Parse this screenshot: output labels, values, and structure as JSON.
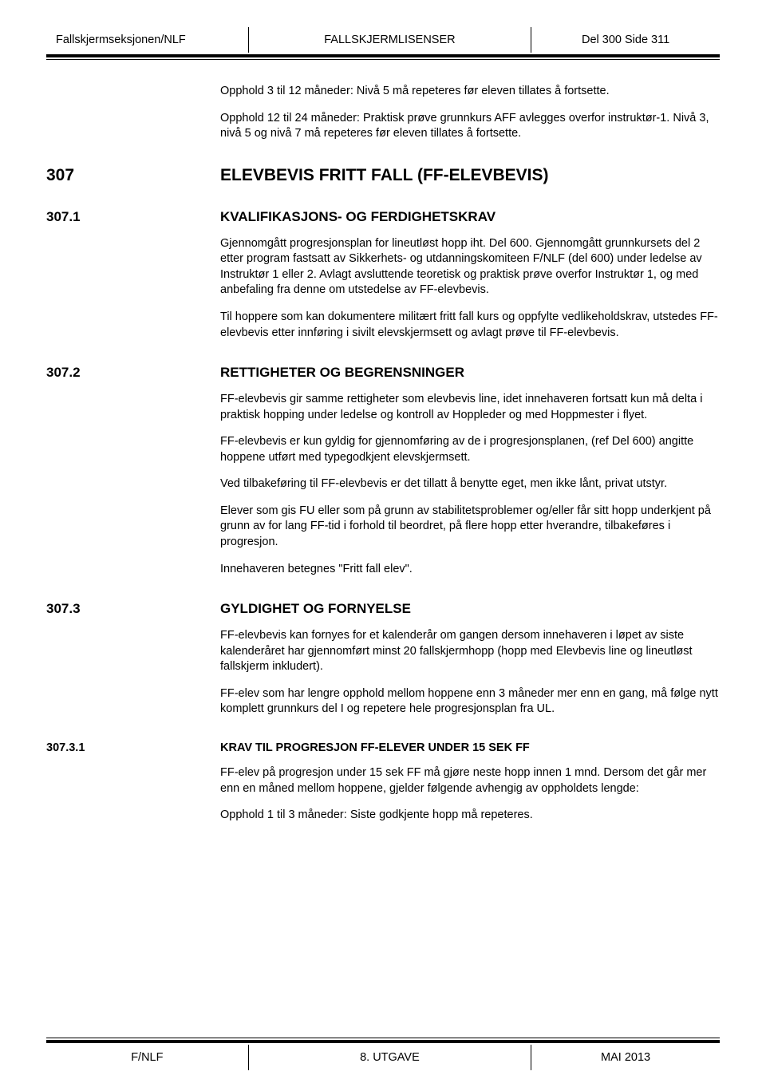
{
  "header": {
    "left": "Fallskjermseksjonen/NLF",
    "center": "FALLSKJERMLISENSER",
    "right": "Del 300 Side 311"
  },
  "intro": {
    "p1": "Opphold 3 til 12 måneder: Nivå 5 må repeteres før eleven tillates å fortsette.",
    "p2": "Opphold 12 til 24 måneder: Praktisk prøve grunnkurs AFF avlegges overfor instruktør-1. Nivå 3, nivå 5 og nivå 7 må repeteres før eleven tillates å fortsette."
  },
  "s307": {
    "num": "307",
    "title": "ELEVBEVIS FRITT FALL (FF-ELEVBEVIS)"
  },
  "s3071": {
    "num": "307.1",
    "title": "KVALIFIKASJONS- OG FERDIGHETSKRAV",
    "p1": "Gjennomgått progresjonsplan for lineutløst hopp iht. Del 600. Gjennomgått grunnkursets del 2 etter program fastsatt av Sikkerhets- og utdanningskomiteen F/NLF (del 600) under ledelse av Instruktør 1 eller 2. Avlagt avsluttende teoretisk og praktisk prøve overfor Instruktør 1, og med anbefaling fra denne om utstedelse av FF-elevbevis.",
    "p2": "Til hoppere som kan dokumentere militært fritt fall kurs og oppfylte vedlikeholdskrav, utstedes FF-elevbevis etter innføring i sivilt elevskjermsett og avlagt prøve til FF-elevbevis."
  },
  "s3072": {
    "num": "307.2",
    "title": "RETTIGHETER OG BEGRENSNINGER",
    "p1": "FF-elevbevis gir samme rettigheter som elevbevis line, idet innehaveren fortsatt kun må delta i praktisk hopping under ledelse og kontroll av Hoppleder og med Hoppmester i flyet.",
    "p2": "FF-elevbevis er kun gyldig for gjennomføring av de i progresjonsplanen, (ref Del 600) angitte hoppene utført med typegodkjent elevskjermsett.",
    "p3": "Ved tilbakeføring til FF-elevbevis er det tillatt å benytte eget, men ikke lånt, privat utstyr.",
    "p4": "Elever som gis FU eller som på grunn av stabilitetsproblemer og/eller får sitt hopp underkjent på grunn av for lang FF-tid i forhold til beordret, på flere hopp etter hverandre, tilbakeføres i progresjon.",
    "p5": "Innehaveren betegnes \"Fritt fall elev\"."
  },
  "s3073": {
    "num": "307.3",
    "title": "GYLDIGHET OG FORNYELSE",
    "p1": "FF-elevbevis kan fornyes for et kalenderår om gangen dersom innehaveren i løpet av siste kalenderåret har gjennomført minst 20 fallskjermhopp (hopp med Elevbevis line og lineutløst fallskjerm inkludert).",
    "p2": "FF-elev som har lengre opphold mellom hoppene enn 3 måneder mer enn en gang, må følge nytt komplett grunnkurs del I og repetere hele progresjonsplan fra UL."
  },
  "s30731": {
    "num": "307.3.1",
    "title": "KRAV TIL PROGRESJON FF-ELEVER UNDER 15 SEK FF",
    "p1": "FF-elev på progresjon under 15 sek FF må gjøre neste hopp innen 1 mnd. Dersom det går mer enn en måned mellom hoppene, gjelder følgende avhengig av oppholdets lengde:",
    "p2": "Opphold 1 til 3 måneder: Siste godkjente hopp må repeteres."
  },
  "footer": {
    "left": "F/NLF",
    "center": "8. UTGAVE",
    "right": "MAI 2013"
  }
}
